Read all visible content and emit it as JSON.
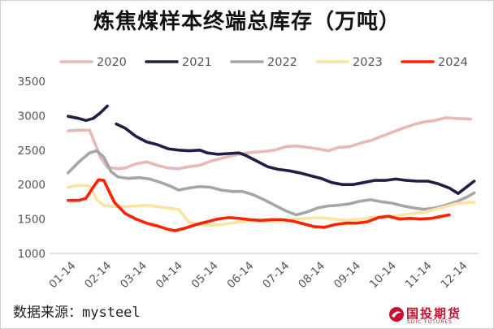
{
  "title": "炼焦煤样本终端总库存（万吨）",
  "source": "数据来源：mysteel",
  "logo": {
    "name": "国投期货",
    "sub": "SDIC FUTURES"
  },
  "chart_data": {
    "type": "line",
    "title": "炼焦煤样本终端总库存（万吨）",
    "xlabel": "",
    "ylabel": "",
    "x_ticks": [
      "01-14",
      "02-14",
      "03-14",
      "04-14",
      "05-14",
      "06-14",
      "07-14",
      "08-14",
      "09-14",
      "10-14",
      "11-14",
      "12-14"
    ],
    "ylim": [
      1000,
      3500
    ],
    "y_ticks": [
      1000,
      1500,
      2000,
      2500,
      3000,
      3500
    ],
    "grid": false,
    "legend_position": "top",
    "series": [
      {
        "name": "2020",
        "color": "#e6b8b7",
        "points": [
          [
            0,
            2780
          ],
          [
            0.3,
            2790
          ],
          [
            0.6,
            2790
          ],
          [
            0.75,
            2600
          ],
          [
            0.9,
            2400
          ],
          [
            1.1,
            2250
          ],
          [
            1.4,
            2230
          ],
          [
            1.6,
            2240
          ],
          [
            1.9,
            2300
          ],
          [
            2.2,
            2330
          ],
          [
            2.5,
            2280
          ],
          [
            2.8,
            2240
          ],
          [
            3.1,
            2230
          ],
          [
            3.4,
            2260
          ],
          [
            3.7,
            2280
          ],
          [
            4.0,
            2340
          ],
          [
            4.3,
            2380
          ],
          [
            4.6,
            2420
          ],
          [
            4.9,
            2450
          ],
          [
            5.2,
            2470
          ],
          [
            5.5,
            2480
          ],
          [
            5.8,
            2500
          ],
          [
            6.1,
            2550
          ],
          [
            6.4,
            2560
          ],
          [
            6.7,
            2540
          ],
          [
            7.0,
            2520
          ],
          [
            7.3,
            2490
          ],
          [
            7.6,
            2540
          ],
          [
            7.9,
            2550
          ],
          [
            8.2,
            2600
          ],
          [
            8.5,
            2640
          ],
          [
            8.8,
            2700
          ],
          [
            9.1,
            2760
          ],
          [
            9.4,
            2820
          ],
          [
            9.7,
            2870
          ],
          [
            10.0,
            2910
          ],
          [
            10.3,
            2930
          ],
          [
            10.6,
            2970
          ],
          [
            10.9,
            2960
          ],
          [
            11.3,
            2950
          ]
        ]
      },
      {
        "name": "2021",
        "color": "#1f1f45",
        "segments": [
          [
            [
              0,
              2990
            ],
            [
              0.3,
              2960
            ],
            [
              0.5,
              2930
            ],
            [
              0.7,
              2960
            ],
            [
              0.9,
              3040
            ],
            [
              1.1,
              3140
            ]
          ],
          [
            [
              1.35,
              2880
            ],
            [
              1.6,
              2820
            ],
            [
              1.9,
              2700
            ],
            [
              2.2,
              2620
            ],
            [
              2.5,
              2580
            ],
            [
              2.8,
              2520
            ],
            [
              3.1,
              2500
            ],
            [
              3.4,
              2490
            ],
            [
              3.7,
              2500
            ],
            [
              3.9,
              2460
            ],
            [
              4.2,
              2440
            ],
            [
              4.5,
              2450
            ],
            [
              4.8,
              2460
            ],
            [
              5.0,
              2420
            ],
            [
              5.3,
              2340
            ],
            [
              5.6,
              2260
            ],
            [
              5.9,
              2220
            ],
            [
              6.2,
              2200
            ],
            [
              6.5,
              2170
            ],
            [
              6.8,
              2130
            ],
            [
              7.1,
              2090
            ],
            [
              7.4,
              2030
            ],
            [
              7.7,
              2000
            ],
            [
              8.0,
              2000
            ],
            [
              8.3,
              2030
            ],
            [
              8.6,
              2060
            ],
            [
              8.9,
              2060
            ],
            [
              9.2,
              2080
            ],
            [
              9.5,
              2060
            ],
            [
              9.8,
              2050
            ],
            [
              10.1,
              2050
            ],
            [
              10.4,
              2010
            ],
            [
              10.7,
              1950
            ],
            [
              10.95,
              1870
            ],
            [
              11.2,
              1970
            ],
            [
              11.4,
              2050
            ]
          ]
        ]
      },
      {
        "name": "2022",
        "color": "#a6a6a6",
        "points": [
          [
            0,
            2170
          ],
          [
            0.3,
            2330
          ],
          [
            0.6,
            2460
          ],
          [
            0.8,
            2490
          ],
          [
            1.0,
            2400
          ],
          [
            1.2,
            2190
          ],
          [
            1.4,
            2110
          ],
          [
            1.7,
            2090
          ],
          [
            2.0,
            2100
          ],
          [
            2.3,
            2080
          ],
          [
            2.6,
            2030
          ],
          [
            2.9,
            1970
          ],
          [
            3.1,
            1920
          ],
          [
            3.4,
            1950
          ],
          [
            3.7,
            1970
          ],
          [
            4.0,
            1960
          ],
          [
            4.3,
            1920
          ],
          [
            4.6,
            1900
          ],
          [
            4.9,
            1900
          ],
          [
            5.2,
            1850
          ],
          [
            5.5,
            1780
          ],
          [
            5.8,
            1700
          ],
          [
            6.1,
            1620
          ],
          [
            6.4,
            1560
          ],
          [
            6.7,
            1600
          ],
          [
            7.0,
            1660
          ],
          [
            7.3,
            1690
          ],
          [
            7.6,
            1700
          ],
          [
            7.9,
            1720
          ],
          [
            8.2,
            1760
          ],
          [
            8.5,
            1780
          ],
          [
            8.8,
            1750
          ],
          [
            9.1,
            1730
          ],
          [
            9.4,
            1690
          ],
          [
            9.7,
            1660
          ],
          [
            10.0,
            1640
          ],
          [
            10.3,
            1660
          ],
          [
            10.6,
            1700
          ],
          [
            10.9,
            1750
          ],
          [
            11.2,
            1820
          ],
          [
            11.4,
            1880
          ]
        ]
      },
      {
        "name": "2023",
        "color": "#fbe3a3",
        "points": [
          [
            0,
            1960
          ],
          [
            0.3,
            1990
          ],
          [
            0.6,
            1980
          ],
          [
            0.8,
            1780
          ],
          [
            1.0,
            1700
          ],
          [
            1.3,
            1680
          ],
          [
            1.6,
            1680
          ],
          [
            1.9,
            1690
          ],
          [
            2.2,
            1700
          ],
          [
            2.5,
            1680
          ],
          [
            2.8,
            1660
          ],
          [
            3.1,
            1640
          ],
          [
            3.4,
            1450
          ],
          [
            3.7,
            1420
          ],
          [
            4.0,
            1410
          ],
          [
            4.3,
            1420
          ],
          [
            4.6,
            1440
          ],
          [
            4.9,
            1460
          ],
          [
            5.2,
            1480
          ],
          [
            5.5,
            1470
          ],
          [
            5.8,
            1460
          ],
          [
            6.1,
            1480
          ],
          [
            6.4,
            1500
          ],
          [
            6.7,
            1510
          ],
          [
            7.0,
            1520
          ],
          [
            7.3,
            1510
          ],
          [
            7.6,
            1490
          ],
          [
            7.9,
            1480
          ],
          [
            8.2,
            1500
          ],
          [
            8.5,
            1520
          ],
          [
            8.8,
            1540
          ],
          [
            9.1,
            1540
          ],
          [
            9.4,
            1560
          ],
          [
            9.7,
            1580
          ],
          [
            10.0,
            1600
          ],
          [
            10.3,
            1640
          ],
          [
            10.6,
            1680
          ],
          [
            10.9,
            1720
          ],
          [
            11.2,
            1740
          ],
          [
            11.4,
            1740
          ]
        ]
      },
      {
        "name": "2024",
        "color": "#ff2200",
        "points": [
          [
            0,
            1770
          ],
          [
            0.3,
            1770
          ],
          [
            0.5,
            1800
          ],
          [
            0.7,
            1960
          ],
          [
            0.85,
            2070
          ],
          [
            1.0,
            2060
          ],
          [
            1.15,
            1900
          ],
          [
            1.3,
            1740
          ],
          [
            1.6,
            1580
          ],
          [
            1.9,
            1500
          ],
          [
            2.2,
            1440
          ],
          [
            2.5,
            1400
          ],
          [
            2.8,
            1350
          ],
          [
            3.0,
            1330
          ],
          [
            3.3,
            1370
          ],
          [
            3.6,
            1420
          ],
          [
            3.9,
            1460
          ],
          [
            4.2,
            1500
          ],
          [
            4.5,
            1520
          ],
          [
            4.8,
            1510
          ],
          [
            5.1,
            1490
          ],
          [
            5.4,
            1480
          ],
          [
            5.7,
            1490
          ],
          [
            6.0,
            1490
          ],
          [
            6.3,
            1470
          ],
          [
            6.6,
            1430
          ],
          [
            6.9,
            1390
          ],
          [
            7.2,
            1380
          ],
          [
            7.5,
            1420
          ],
          [
            7.8,
            1440
          ],
          [
            8.1,
            1440
          ],
          [
            8.4,
            1460
          ],
          [
            8.7,
            1520
          ],
          [
            9.0,
            1540
          ],
          [
            9.3,
            1500
          ],
          [
            9.6,
            1510
          ],
          [
            9.9,
            1500
          ],
          [
            10.2,
            1510
          ],
          [
            10.5,
            1540
          ],
          [
            10.7,
            1560
          ]
        ]
      }
    ]
  }
}
